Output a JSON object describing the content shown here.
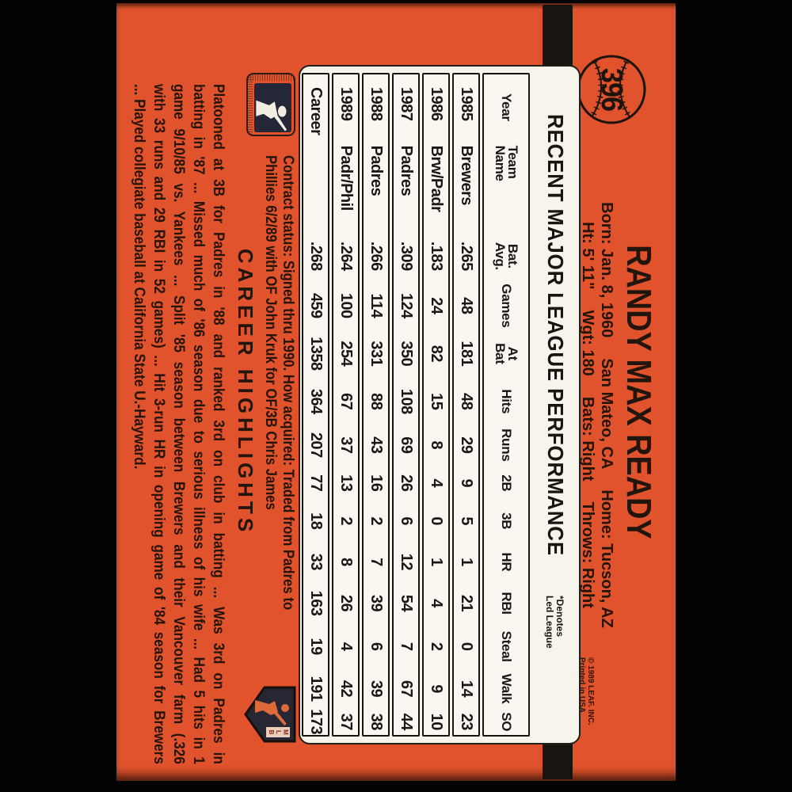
{
  "card": {
    "number": "396",
    "player_name": "RANDY MAX READY",
    "bio_line1": [
      "Born: Jan. 8, 1960",
      "San Mateo, CA",
      "Home: Tucson, AZ"
    ],
    "bio_line2": [
      "Ht: 5' 11\"",
      "Wgt: 180",
      "Bats: Right",
      "Throws: Right"
    ],
    "copyright_line1": "© 1989 LEAF. INC.",
    "copyright_line2": "Printed in USA",
    "stats": {
      "title": "RECENT MAJOR LEAGUE PERFORMANCE",
      "denotes_line1": "*Denotes",
      "denotes_line2": "Led League",
      "columns": [
        {
          "label": [
            "Year"
          ]
        },
        {
          "label": [
            "Team",
            "Name"
          ]
        },
        {
          "label": [
            "Bat.",
            "Avg."
          ]
        },
        {
          "label": [
            "Games"
          ]
        },
        {
          "label": [
            "At",
            "Bat"
          ]
        },
        {
          "label": [
            "Hits"
          ]
        },
        {
          "label": [
            "Runs"
          ]
        },
        {
          "label": [
            "2B"
          ]
        },
        {
          "label": [
            "3B"
          ]
        },
        {
          "label": [
            "HR"
          ]
        },
        {
          "label": [
            "RBI"
          ]
        },
        {
          "label": [
            "Steal"
          ]
        },
        {
          "label": [
            "Walk"
          ]
        },
        {
          "label": [
            "SO"
          ]
        }
      ],
      "rows": [
        [
          "1985",
          "Brewers",
          ".265",
          "48",
          "181",
          "48",
          "29",
          "9",
          "5",
          "1",
          "21",
          "0",
          "14",
          "23"
        ],
        [
          "1986",
          "Brw/Padr",
          ".183",
          "24",
          "82",
          "15",
          "8",
          "4",
          "0",
          "1",
          "4",
          "2",
          "9",
          "10"
        ],
        [
          "1987",
          "Padres",
          ".309",
          "124",
          "350",
          "108",
          "69",
          "26",
          "6",
          "12",
          "54",
          "7",
          "67",
          "44"
        ],
        [
          "1988",
          "Padres",
          ".266",
          "114",
          "331",
          "88",
          "43",
          "16",
          "2",
          "7",
          "39",
          "6",
          "39",
          "38"
        ],
        [
          "1989",
          "Padr/Phil",
          ".264",
          "100",
          "254",
          "67",
          "37",
          "13",
          "2",
          "8",
          "26",
          "4",
          "42",
          "37"
        ],
        [
          "Career",
          "",
          ".268",
          "459",
          "1358",
          "364",
          "207",
          "77",
          "18",
          "33",
          "163",
          "19",
          "191",
          "173"
        ]
      ]
    },
    "contract_line1": "Contract status: Signed thru 1990. How acquired: Traded from Padres to",
    "contract_line2": "Phillies 6/2/89 with OF John Kruk for OF/3B Chris James",
    "career_highlights_title": "CAREER HIGHLIGHTS",
    "highlights_lines": [
      "Platooned at 3B for Padres in '88 and ranked 3rd on club in batting ... Was 3rd on Padres in",
      "batting in '87 ... Missed much of '86 season due to serious illness of his wife ... Had 5 hits in 1",
      "game 9/10/85 vs. Yankees ... Split '85 season between Brewers and their Vancouver farm (.326",
      "with 33 runs and 29 RBI in 52 games) ... Hit 3-run HR in opening game of '84 season for Brewers",
      "... Played collegiate baseball at California State U.-Hayward."
    ],
    "mlbpa_logo_text": "MLB",
    "colors": {
      "background": "#020202",
      "card_orange": "#e1532d",
      "ink": "#241a12",
      "stats_box": "#f7f4ec",
      "black_bar": "#1a1410",
      "logo_navy": "#242738"
    }
  }
}
